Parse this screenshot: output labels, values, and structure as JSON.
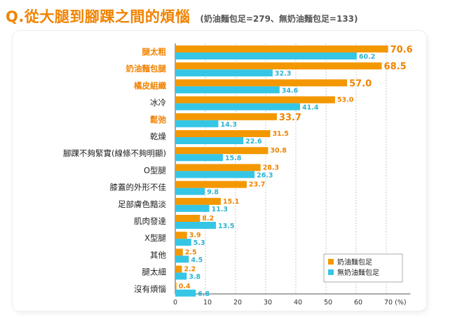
{
  "title": "Q.從大腿到腳踝之間的煩惱",
  "subtitle": "(奶油麵包足=279、無奶油麵包足=133)",
  "chart_data": {
    "type": "bar",
    "orientation": "horizontal",
    "categories": [
      "腿太粗",
      "奶油麵包腿",
      "橘皮組織",
      "冰冷",
      "鬆弛",
      "乾燥",
      "腳踝不夠緊實(線條不夠明顯)",
      "O型腿",
      "膝蓋的外形不佳",
      "足部膚色黯淡",
      "肌肉發達",
      "X型腿",
      "其他",
      "腿太細",
      "沒有煩惱"
    ],
    "highlight_categories": [
      "腿太粗",
      "奶油麵包腿",
      "橘皮組織",
      "鬆弛"
    ],
    "series": [
      {
        "name": "奶油麵包足",
        "color": "#f39800",
        "values": [
          70.6,
          68.5,
          57.0,
          53.0,
          33.7,
          31.5,
          30.8,
          28.3,
          23.7,
          15.1,
          8.2,
          3.9,
          2.5,
          2.2,
          0.4
        ]
      },
      {
        "name": "無奶油麵包足",
        "color": "#35c6e6",
        "values": [
          60.2,
          32.3,
          34.6,
          41.4,
          14.3,
          22.6,
          15.8,
          26.3,
          9.8,
          11.3,
          13.5,
          5.3,
          4.5,
          3.8,
          6.8
        ]
      }
    ],
    "value_labels_1": [
      "70.6",
      "68.5",
      "57.0",
      "53.0",
      "33.7",
      "31.5",
      "30.8",
      "28.3",
      "23.7",
      "15.1",
      "8.2",
      "3.9",
      "2.5",
      "2.2",
      "0.4"
    ],
    "value_labels_2": [
      "60.2",
      "32.3",
      "34.6",
      "41.4",
      "14.3",
      "22.6",
      "15.8",
      "26.3",
      "9.8",
      "11.3",
      "13.5",
      "5.3",
      "4.5",
      "3.8",
      "6.8"
    ],
    "xlim": [
      0,
      80
    ],
    "xticks": [
      0,
      10,
      20,
      30,
      40,
      50,
      60,
      70
    ],
    "xtick_labels": [
      "0",
      "10",
      "20",
      "30",
      "40",
      "50",
      "60",
      "70 (%)"
    ],
    "grid": true,
    "legend_position": "bottom-right",
    "highlight_color": "#f08300",
    "text_color": "#222222"
  }
}
